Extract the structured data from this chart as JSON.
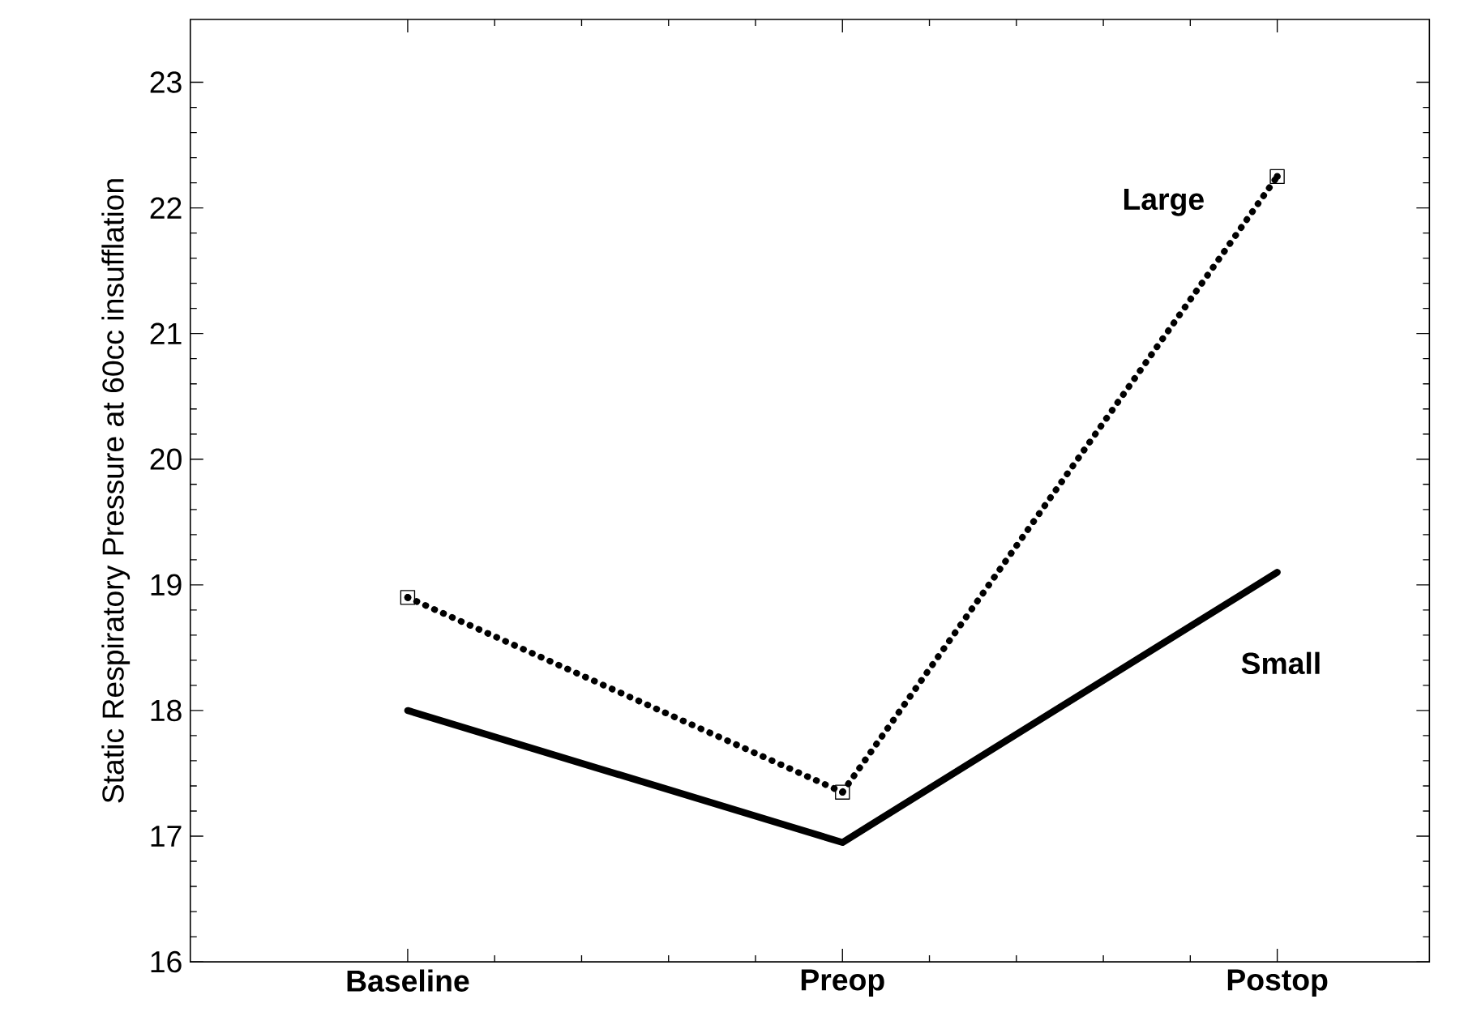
{
  "chart_data": {
    "type": "line",
    "ylabel": "Static Respiratory Pressure at 60cc insufflation",
    "categories": [
      "Baseline",
      "Preop",
      "Postop"
    ],
    "series": [
      {
        "name": "Large",
        "color": "#000000",
        "values": [
          18.9,
          17.35,
          22.25
        ],
        "line_style": "dotted",
        "marker": "square"
      },
      {
        "name": "Small",
        "color": "#000000",
        "values": [
          18.0,
          16.95,
          19.1
        ],
        "line_style": "solid",
        "marker": "none"
      }
    ],
    "ylim": [
      16,
      23.5
    ],
    "yticks": [
      16,
      17,
      18,
      19,
      20,
      21,
      22,
      23
    ],
    "grid": false,
    "legend": false
  }
}
